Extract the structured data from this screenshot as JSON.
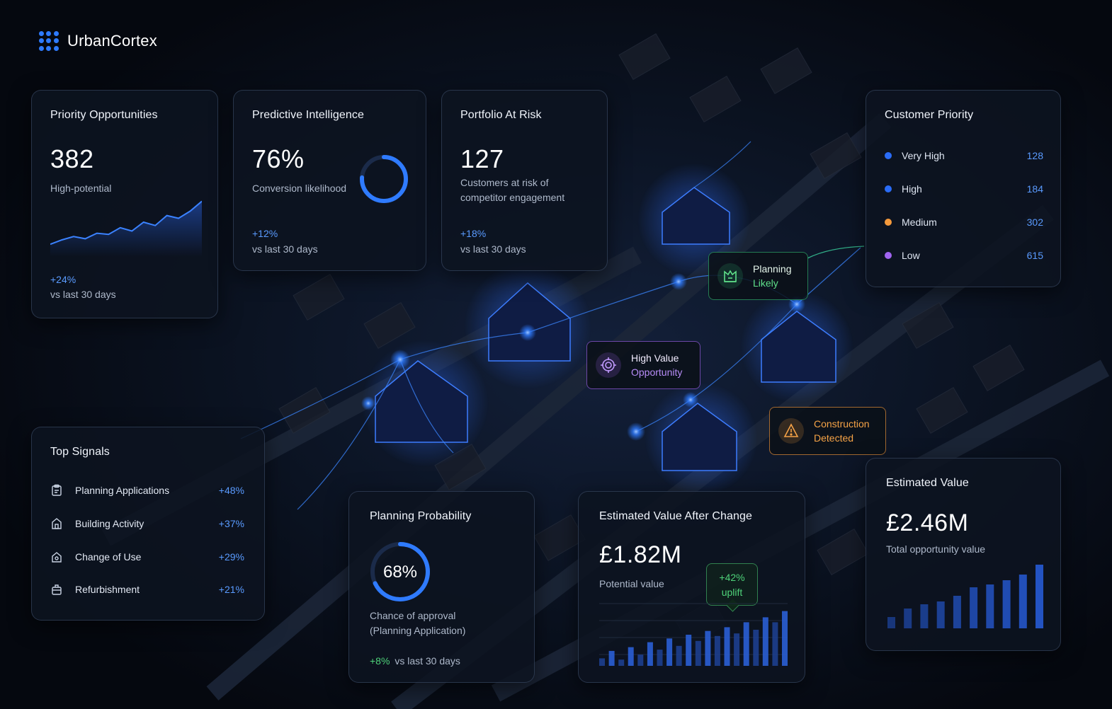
{
  "brand": {
    "name": "UrbanCortex"
  },
  "colors": {
    "accent": "#2e7bff",
    "positive": "#4fd37a",
    "priority_very_high": "#2a6cf6",
    "priority_high": "#2a6cf6",
    "priority_medium": "#f59a3c",
    "priority_low": "#a064f0"
  },
  "priority_opportunities": {
    "title": "Priority Opportunities",
    "value": "382",
    "subtitle": "High-potential",
    "delta": "+24%",
    "delta_note": "vs last 30 days",
    "trend": [
      10,
      18,
      24,
      20,
      30,
      28,
      40,
      34,
      50,
      44,
      62,
      57,
      70,
      88
    ]
  },
  "predictive_intelligence": {
    "title": "Predictive Intelligence",
    "value": "76%",
    "subtitle": "Conversion likelihood",
    "delta": "+12%",
    "delta_note": "vs last 30 days",
    "gauge_fraction": 0.76
  },
  "portfolio_at_risk": {
    "title": "Portfolio At Risk",
    "value": "127",
    "subtitle_line1": "Customers at risk of",
    "subtitle_line2": "competitor engagement",
    "delta": "+18%",
    "delta_note": "vs last 30 days"
  },
  "customer_priority": {
    "title": "Customer Priority",
    "items": [
      {
        "label": "Very High",
        "value": "128",
        "color": "#2a6cf6"
      },
      {
        "label": "High",
        "value": "184",
        "color": "#2a6cf6"
      },
      {
        "label": "Medium",
        "value": "302",
        "color": "#f59a3c"
      },
      {
        "label": "Low",
        "value": "615",
        "color": "#a064f0"
      }
    ]
  },
  "map_badges": {
    "planning": {
      "line1": "Planning",
      "line2": "Likely",
      "icon": "planning-icon"
    },
    "high_value": {
      "line1": "High Value",
      "line2": "Opportunity",
      "icon": "target-icon"
    },
    "construction": {
      "line1": "Construction",
      "line2": "Detected",
      "icon": "construction-icon"
    }
  },
  "top_signals": {
    "title": "Top Signals",
    "items": [
      {
        "label": "Planning Applications",
        "value": "+48%",
        "icon": "clipboard-icon"
      },
      {
        "label": "Building Activity",
        "value": "+37%",
        "icon": "building-icon"
      },
      {
        "label": "Change of Use",
        "value": "+29%",
        "icon": "house-icon"
      },
      {
        "label": "Refurbishment",
        "value": "+21%",
        "icon": "toolbox-icon"
      }
    ]
  },
  "planning_probability": {
    "title": "Planning Probability",
    "value": "68%",
    "gauge_fraction": 0.68,
    "subtitle_line1": "Chance of approval",
    "subtitle_line2": "(Planning Application)",
    "delta": "+8%",
    "delta_note": "vs last 30 days"
  },
  "value_after_change": {
    "title": "Estimated Value After Change",
    "value": "£1.82M",
    "subtitle": "Potential value",
    "uplift_value": "+42%",
    "uplift_label": "uplift",
    "bars": [
      12,
      24,
      10,
      30,
      18,
      38,
      26,
      44,
      32,
      50,
      40,
      56,
      48,
      62,
      52,
      70,
      58,
      78,
      70,
      88
    ]
  },
  "estimated_value": {
    "title": "Estimated Value",
    "value": "£2.46M",
    "subtitle": "Total opportunity value",
    "bars": [
      16,
      28,
      34,
      38,
      46,
      58,
      62,
      68,
      76,
      90
    ]
  }
}
